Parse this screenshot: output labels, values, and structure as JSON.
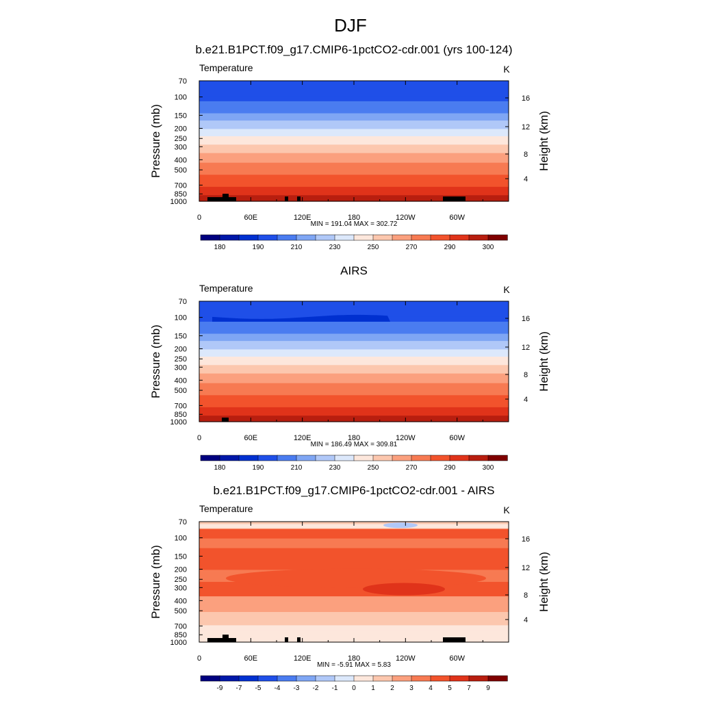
{
  "page_title": "DJF",
  "chart_data": [
    {
      "type": "heatmap",
      "title": "b.e21.B1PCT.f09_g17.CMIP6-1pctCO2-cdr.001 (yrs 100-124)",
      "variable": "Temperature",
      "units": "K",
      "ylabel": "Pressure (mb)",
      "ylabel_right": "Height (km)",
      "xticks": [
        "0",
        "60E",
        "120E",
        "180",
        "120W",
        "60W"
      ],
      "yticks": [
        "70",
        "100",
        "150",
        "200",
        "250",
        "300",
        "400",
        "500",
        "700",
        "850",
        "1000"
      ],
      "yticks_right": [
        "16",
        "12",
        "8",
        "4"
      ],
      "xlim": [
        0,
        360
      ],
      "ylim": [
        1000,
        70
      ],
      "stats": "MIN = 191.04  MAX = 302.72",
      "colorbar_labels": [
        "180",
        "190",
        "210",
        "230",
        "250",
        "270",
        "290",
        "300"
      ],
      "contour_levels": [
        180,
        185,
        190,
        200,
        210,
        220,
        230,
        240,
        250,
        260,
        270,
        280,
        290,
        295,
        300
      ]
    },
    {
      "type": "heatmap",
      "title": "AIRS",
      "variable": "Temperature",
      "units": "K",
      "ylabel": "Pressure (mb)",
      "ylabel_right": "Height (km)",
      "xticks": [
        "0",
        "60E",
        "120E",
        "180",
        "120W",
        "60W"
      ],
      "yticks": [
        "70",
        "100",
        "150",
        "200",
        "250",
        "300",
        "400",
        "500",
        "700",
        "850",
        "1000"
      ],
      "yticks_right": [
        "16",
        "12",
        "8",
        "4"
      ],
      "xlim": [
        0,
        360
      ],
      "ylim": [
        1000,
        70
      ],
      "stats": "MIN = 186.49  MAX = 309.81",
      "colorbar_labels": [
        "180",
        "190",
        "210",
        "230",
        "250",
        "270",
        "290",
        "300"
      ],
      "contour_levels": [
        180,
        185,
        190,
        200,
        210,
        220,
        230,
        240,
        250,
        260,
        270,
        280,
        290,
        295,
        300
      ]
    },
    {
      "type": "heatmap",
      "title": "b.e21.B1PCT.f09_g17.CMIP6-1pctCO2-cdr.001 - AIRS",
      "variable": "Temperature",
      "units": "K",
      "ylabel": "Pressure (mb)",
      "ylabel_right": "Height (km)",
      "xticks": [
        "0",
        "60E",
        "120E",
        "180",
        "120W",
        "60W"
      ],
      "yticks": [
        "70",
        "100",
        "150",
        "200",
        "250",
        "300",
        "400",
        "500",
        "700",
        "850",
        "1000"
      ],
      "yticks_right": [
        "16",
        "12",
        "8",
        "4"
      ],
      "xlim": [
        0,
        360
      ],
      "ylim": [
        1000,
        70
      ],
      "stats": "MIN = -5.91  MAX =  5.83",
      "colorbar_labels": [
        "-9",
        "-7",
        "-5",
        "-4",
        "-3",
        "-2",
        "-1",
        "0",
        "1",
        "2",
        "3",
        "4",
        "5",
        "7",
        "9"
      ],
      "contour_levels": [
        -9,
        -7,
        -5,
        -4,
        -3,
        -2,
        -1,
        0,
        1,
        2,
        3,
        4,
        5,
        7,
        9
      ]
    }
  ],
  "colors": {
    "colormap": [
      "#00007f",
      "#0018a8",
      "#0030d0",
      "#1f4fe8",
      "#4a7cf0",
      "#7fa6f4",
      "#b0c8f8",
      "#dce8fb",
      "#fde7dc",
      "#fcc7ae",
      "#fba07e",
      "#f77a52",
      "#f2532c",
      "#e0331a",
      "#b81e0f",
      "#7f0000"
    ],
    "terrain": "#000000"
  }
}
